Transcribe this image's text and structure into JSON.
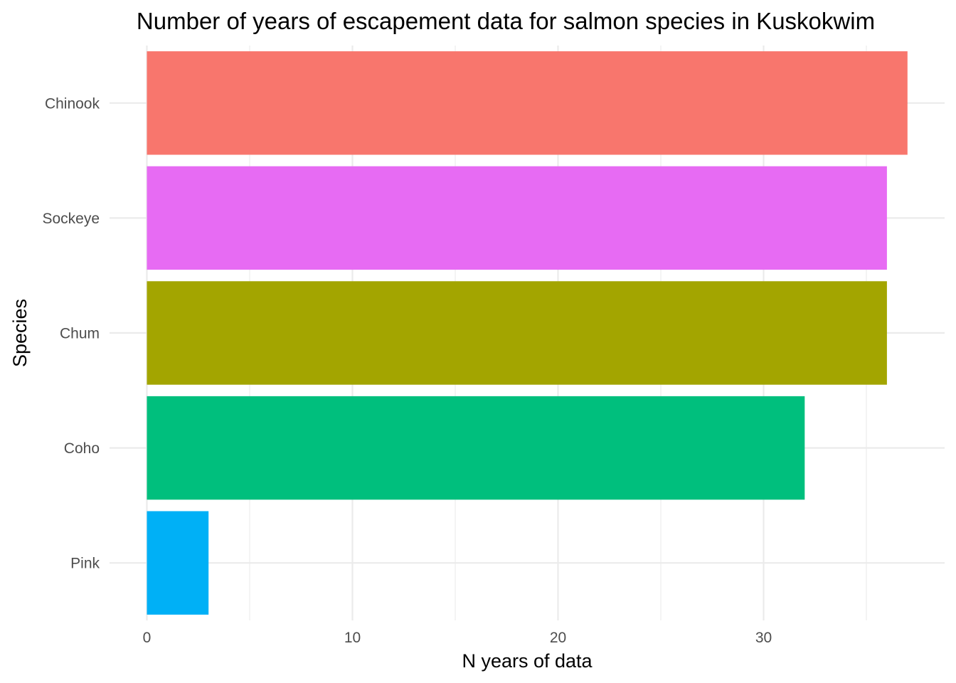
{
  "chart_data": {
    "type": "bar",
    "orientation": "horizontal",
    "title": "Number of years of escapement data for salmon species in Kuskokwim",
    "xlabel": "N years of data",
    "ylabel": "Species",
    "categories": [
      "Chinook",
      "Sockeye",
      "Chum",
      "Coho",
      "Pink"
    ],
    "values": [
      37,
      36,
      36,
      32,
      3
    ],
    "colors": [
      "#F8766D",
      "#E76BF3",
      "#A3A500",
      "#00BF7D",
      "#00B0F6"
    ],
    "xlim": [
      0,
      38.2
    ],
    "xticks": [
      0,
      10,
      20,
      30
    ],
    "xticks_minor": [
      5,
      15,
      25,
      35
    ],
    "grid": true,
    "legend": "none"
  }
}
